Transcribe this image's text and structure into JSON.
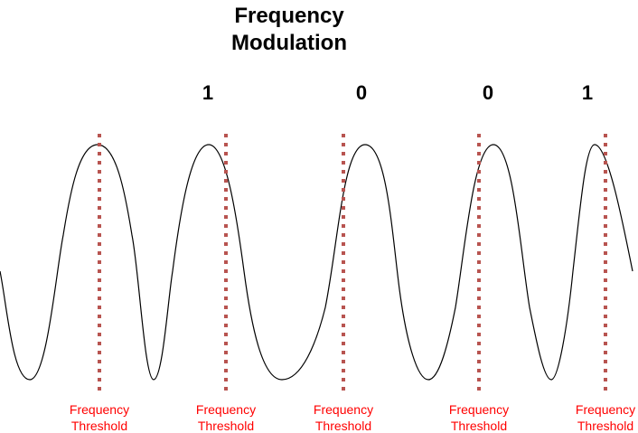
{
  "title": {
    "line1": "Frequency",
    "line2": "Modulation"
  },
  "bits": [
    "1",
    "0",
    "0",
    "1"
  ],
  "threshold_label": {
    "line1": "Frequency",
    "line2": "Threshold"
  },
  "threshold_count": 5,
  "colors": {
    "wave": "#000000",
    "threshold_line": "#b85450",
    "threshold_label": "#ff0000",
    "text": "#000000"
  }
}
